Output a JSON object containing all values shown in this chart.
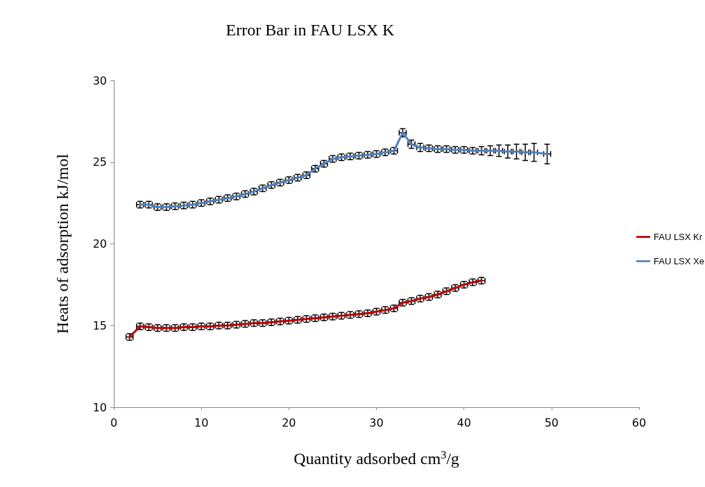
{
  "chart_data": {
    "type": "line",
    "title": "Error Bar in FAU LSX K",
    "xlabel": "Quantity adsorbed cm$^{3}$/g",
    "ylabel": "Heats of adsorption kJ/mol",
    "xlim": [
      0,
      60
    ],
    "xticks": [
      0,
      10,
      20,
      30,
      40,
      50,
      60
    ],
    "ylim": [
      10,
      30
    ],
    "yticks": [
      10,
      15,
      20,
      25,
      30
    ],
    "grid": false,
    "legend": "right",
    "marker": "none",
    "line_style": "solid",
    "series": [
      {
        "name": "FAU LSX Kr",
        "color": "#c00000",
        "x": [
          1.8,
          3,
          4,
          5,
          6,
          7,
          8,
          9,
          10,
          11,
          12,
          13,
          14,
          15,
          16,
          17,
          18,
          19,
          20,
          21,
          22,
          23,
          24,
          25,
          26,
          27,
          28,
          29,
          30,
          31,
          32,
          33,
          34,
          35,
          36,
          37,
          38,
          39,
          40,
          41,
          42
        ],
        "values": [
          14.3,
          14.95,
          14.9,
          14.85,
          14.85,
          14.85,
          14.9,
          14.9,
          14.95,
          14.95,
          15.0,
          15.0,
          15.05,
          15.1,
          15.15,
          15.15,
          15.2,
          15.25,
          15.3,
          15.35,
          15.4,
          15.45,
          15.5,
          15.55,
          15.6,
          15.65,
          15.7,
          15.75,
          15.85,
          15.95,
          16.05,
          16.4,
          16.5,
          16.65,
          16.75,
          16.9,
          17.1,
          17.3,
          17.5,
          17.65,
          17.75
        ],
        "errors": [
          0.2,
          0.2,
          0.2,
          0.2,
          0.2,
          0.2,
          0.2,
          0.2,
          0.2,
          0.2,
          0.2,
          0.2,
          0.2,
          0.2,
          0.2,
          0.2,
          0.2,
          0.2,
          0.2,
          0.2,
          0.2,
          0.2,
          0.2,
          0.2,
          0.2,
          0.2,
          0.2,
          0.2,
          0.2,
          0.2,
          0.2,
          0.2,
          0.2,
          0.2,
          0.2,
          0.2,
          0.2,
          0.2,
          0.2,
          0.2,
          0.2
        ],
        "xerrors": [
          0.4,
          0.4,
          0.4,
          0.4,
          0.4,
          0.4,
          0.4,
          0.4,
          0.4,
          0.4,
          0.4,
          0.4,
          0.4,
          0.4,
          0.4,
          0.4,
          0.4,
          0.4,
          0.4,
          0.4,
          0.4,
          0.4,
          0.4,
          0.4,
          0.4,
          0.4,
          0.4,
          0.4,
          0.4,
          0.4,
          0.4,
          0.4,
          0.4,
          0.4,
          0.4,
          0.4,
          0.4,
          0.4,
          0.4,
          0.4,
          0.4
        ]
      },
      {
        "name": "FAU LSX Xe",
        "color": "#4f81bd",
        "x": [
          3,
          4,
          5,
          6,
          7,
          8,
          9,
          10,
          11,
          12,
          13,
          14,
          15,
          16,
          17,
          18,
          19,
          20,
          21,
          22,
          23,
          24,
          25,
          26,
          27,
          28,
          29,
          30,
          31,
          32,
          33,
          34,
          35,
          36,
          37,
          38,
          39,
          40,
          41,
          42,
          43,
          44,
          45,
          46,
          47,
          48,
          49.5
        ],
        "values": [
          22.4,
          22.4,
          22.25,
          22.25,
          22.3,
          22.35,
          22.4,
          22.5,
          22.6,
          22.7,
          22.8,
          22.9,
          23.05,
          23.2,
          23.4,
          23.6,
          23.75,
          23.9,
          24.05,
          24.2,
          24.6,
          24.9,
          25.2,
          25.3,
          25.35,
          25.4,
          25.45,
          25.5,
          25.6,
          25.7,
          26.8,
          26.1,
          25.9,
          25.85,
          25.8,
          25.8,
          25.75,
          25.75,
          25.7,
          25.7,
          25.7,
          25.7,
          25.65,
          25.65,
          25.6,
          25.6,
          25.5
        ],
        "errors": [
          0.2,
          0.2,
          0.2,
          0.2,
          0.2,
          0.2,
          0.2,
          0.2,
          0.2,
          0.2,
          0.2,
          0.2,
          0.2,
          0.2,
          0.2,
          0.2,
          0.2,
          0.2,
          0.2,
          0.2,
          0.2,
          0.2,
          0.2,
          0.2,
          0.2,
          0.2,
          0.2,
          0.2,
          0.2,
          0.2,
          0.25,
          0.25,
          0.25,
          0.2,
          0.2,
          0.2,
          0.2,
          0.2,
          0.2,
          0.25,
          0.3,
          0.35,
          0.4,
          0.45,
          0.5,
          0.55,
          0.6
        ],
        "xerrors": [
          0.4,
          0.4,
          0.4,
          0.4,
          0.4,
          0.4,
          0.4,
          0.4,
          0.4,
          0.4,
          0.4,
          0.4,
          0.4,
          0.4,
          0.4,
          0.4,
          0.4,
          0.4,
          0.4,
          0.4,
          0.4,
          0.4,
          0.4,
          0.4,
          0.4,
          0.4,
          0.4,
          0.4,
          0.4,
          0.4,
          0.4,
          0.4,
          0.4,
          0.4,
          0.4,
          0.4,
          0.4,
          0.4,
          0.4,
          0.4,
          0.4,
          0.4,
          0.4,
          0.4,
          0.4,
          0.4,
          0.4
        ]
      }
    ]
  }
}
